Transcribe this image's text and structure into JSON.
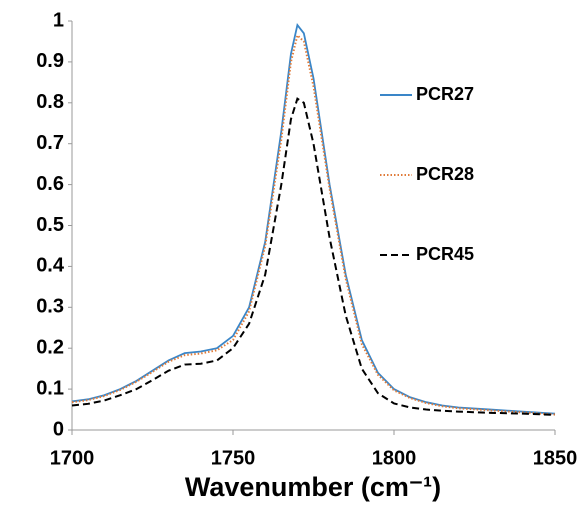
{
  "chart_data": {
    "type": "line",
    "x_label": "Wavenumber (cm⁻¹)",
    "x": [
      1700,
      1705,
      1710,
      1715,
      1720,
      1725,
      1730,
      1735,
      1740,
      1745,
      1750,
      1755,
      1760,
      1765,
      1768,
      1770,
      1772,
      1775,
      1780,
      1785,
      1790,
      1795,
      1800,
      1805,
      1810,
      1815,
      1820,
      1830,
      1840,
      1850
    ],
    "series": [
      {
        "name": "PCR27",
        "color": "#3a86c8",
        "style": "solid",
        "values": [
          0.07,
          0.075,
          0.085,
          0.1,
          0.12,
          0.145,
          0.17,
          0.188,
          0.192,
          0.2,
          0.23,
          0.3,
          0.46,
          0.73,
          0.92,
          0.99,
          0.97,
          0.86,
          0.6,
          0.38,
          0.22,
          0.14,
          0.1,
          0.08,
          0.068,
          0.06,
          0.055,
          0.05,
          0.045,
          0.04
        ]
      },
      {
        "name": "PCR28",
        "color": "#e07b39",
        "style": "dotted",
        "values": [
          0.068,
          0.073,
          0.083,
          0.098,
          0.118,
          0.142,
          0.167,
          0.183,
          0.187,
          0.195,
          0.22,
          0.29,
          0.45,
          0.71,
          0.9,
          0.965,
          0.95,
          0.84,
          0.59,
          0.37,
          0.21,
          0.135,
          0.097,
          0.078,
          0.066,
          0.058,
          0.053,
          0.048,
          0.043,
          0.038
        ]
      },
      {
        "name": "PCR45",
        "color": "#000000",
        "style": "dashed",
        "values": [
          0.06,
          0.064,
          0.072,
          0.085,
          0.1,
          0.122,
          0.145,
          0.16,
          0.162,
          0.17,
          0.2,
          0.26,
          0.38,
          0.6,
          0.76,
          0.81,
          0.8,
          0.7,
          0.47,
          0.28,
          0.15,
          0.09,
          0.065,
          0.055,
          0.05,
          0.047,
          0.045,
          0.042,
          0.04,
          0.037
        ]
      }
    ],
    "xlim": [
      1700,
      1850
    ],
    "xticks": [
      1700,
      1750,
      1800,
      1850
    ],
    "ylim": [
      0,
      1
    ],
    "yticks": [
      0,
      0.1,
      0.2,
      0.3,
      0.4,
      0.5,
      0.6,
      0.7,
      0.8,
      0.9,
      1
    ],
    "grid": false
  }
}
